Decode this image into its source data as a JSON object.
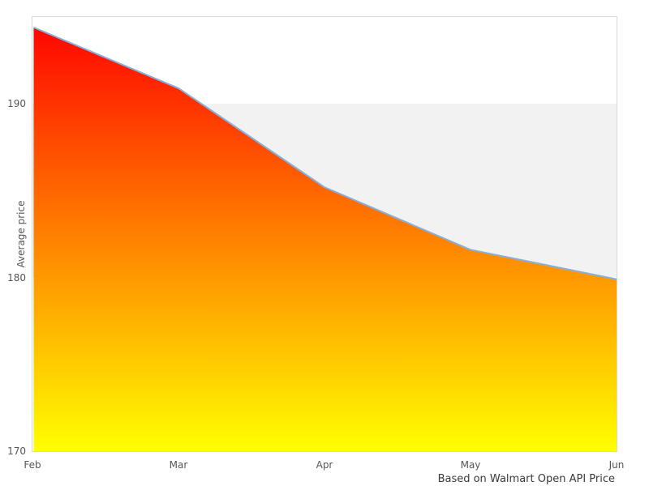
{
  "chart_data": {
    "type": "area",
    "x": [
      "Feb",
      "Mar",
      "Apr",
      "May",
      "Jun"
    ],
    "series": [
      {
        "name": "Average price",
        "values": [
          194.4,
          190.9,
          185.2,
          181.6,
          179.9
        ]
      }
    ],
    "ylabel": "Average price",
    "yticks": [
      170,
      180,
      190
    ],
    "ylim": [
      170,
      195
    ],
    "band": {
      "from": 180,
      "to": 190,
      "color": "#f2f2f2"
    },
    "caption": "Based on Walmart Open API Price",
    "legend_position": "none",
    "grid": "horizontal-band-only",
    "colors": {
      "line": "#86b0dc",
      "gradient_top": "#ff0000",
      "gradient_bottom": "#ffff00",
      "plot_border": "#d9d9d9",
      "tick_text": "#555555",
      "caption_text": "#3a3a3a",
      "background": "#ffffff"
    }
  }
}
